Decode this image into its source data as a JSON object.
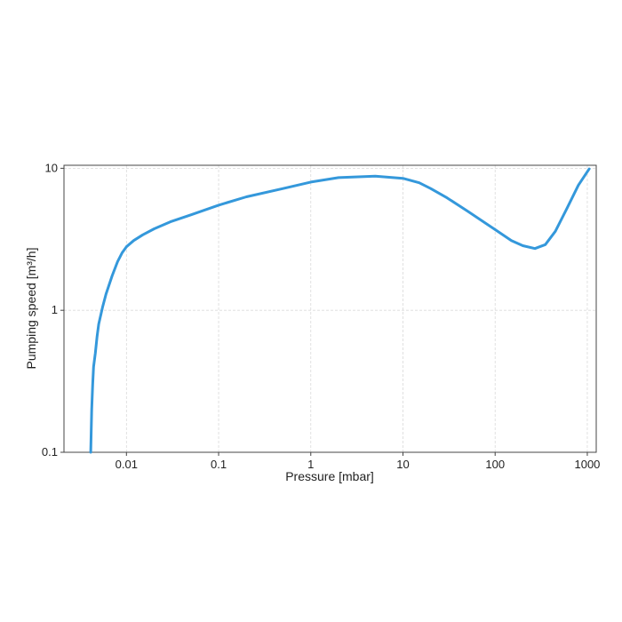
{
  "chart_data": {
    "type": "line",
    "title": "",
    "xlabel": "Pressure [mbar]",
    "ylabel": "Pumping speed [m³/h]",
    "xscale": "log",
    "yscale": "log",
    "xlim": [
      0.0021,
      1250
    ],
    "ylim": [
      0.1,
      10.5
    ],
    "grid": true,
    "legend": "none",
    "color": "#3498db",
    "x_ticks": [
      {
        "value": 0.01,
        "label": "0.01"
      },
      {
        "value": 0.1,
        "label": "0.1"
      },
      {
        "value": 1,
        "label": "1"
      },
      {
        "value": 10,
        "label": "10"
      },
      {
        "value": 100,
        "label": "100"
      },
      {
        "value": 1000,
        "label": "1000"
      }
    ],
    "y_ticks": [
      {
        "value": 0.1,
        "label": "0.1"
      },
      {
        "value": 1,
        "label": "1"
      },
      {
        "value": 10,
        "label": "10"
      }
    ],
    "series": [
      {
        "x": [
          0.0041,
          0.0042,
          0.0043,
          0.0044,
          0.0046,
          0.0048,
          0.005,
          0.0055,
          0.006,
          0.007,
          0.008,
          0.009,
          0.01,
          0.012,
          0.015,
          0.02,
          0.03,
          0.05,
          0.1,
          0.2,
          0.5,
          1,
          2,
          5,
          10,
          15,
          20,
          30,
          50,
          100,
          150,
          200,
          270,
          350,
          450,
          600,
          800,
          1050
        ],
        "y": [
          0.1,
          0.2,
          0.3,
          0.4,
          0.5,
          0.65,
          0.8,
          1.05,
          1.3,
          1.75,
          2.2,
          2.55,
          2.8,
          3.1,
          3.4,
          3.75,
          4.2,
          4.7,
          5.5,
          6.3,
          7.2,
          8.0,
          8.6,
          8.8,
          8.5,
          7.9,
          7.2,
          6.2,
          5.0,
          3.7,
          3.1,
          2.85,
          2.72,
          2.9,
          3.6,
          5.2,
          7.6,
          9.9
        ]
      }
    ]
  }
}
